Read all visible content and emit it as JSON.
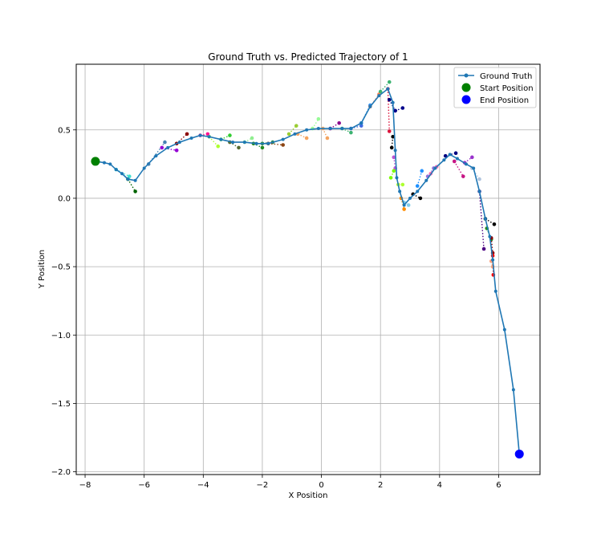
{
  "chart_data": {
    "type": "line",
    "title": "Ground Truth vs. Predicted Trajectory of 1",
    "xlabel": "X Position",
    "ylabel": "Y Position",
    "xlim": [
      -8.3,
      7.4
    ],
    "ylim": [
      -2.02,
      0.98
    ],
    "xticks": [
      "−8",
      "−6",
      "−4",
      "−2",
      "0",
      "2",
      "4",
      "6"
    ],
    "xtick_values": [
      -8,
      -6,
      -4,
      -2,
      0,
      2,
      4,
      6
    ],
    "yticks": [
      "−2.0",
      "−1.5",
      "−1.0",
      "−0.5",
      "0.0",
      "0.5"
    ],
    "ytick_values": [
      -2.0,
      -1.5,
      -1.0,
      -0.5,
      0.0,
      0.5
    ],
    "grid": true,
    "legend_position": "top-right",
    "legend": [
      {
        "label": "Ground Truth",
        "marker": "line-dot",
        "color": "#1f77b4"
      },
      {
        "label": "Start Position",
        "marker": "circle",
        "color": "#008000"
      },
      {
        "label": "End Position",
        "marker": "circle",
        "color": "#0000ff"
      }
    ],
    "ground_truth": {
      "name": "Ground Truth",
      "color": "#1f77b4",
      "x": [
        -7.65,
        -7.35,
        -7.15,
        -6.95,
        -6.75,
        -6.55,
        -6.3,
        -6.0,
        -5.6,
        -5.2,
        -4.8,
        -4.4,
        -4.1,
        -3.8,
        -3.4,
        -3.0,
        -2.6,
        -2.2,
        -1.8,
        -1.3,
        -0.9,
        -0.5,
        -0.1,
        0.3,
        0.7,
        1.0,
        1.35,
        1.65,
        1.95,
        2.25,
        2.42,
        2.5,
        2.55,
        2.65,
        2.8,
        3.0,
        3.25,
        3.55,
        3.85,
        4.15,
        4.35,
        4.6,
        4.9,
        5.15,
        5.35,
        5.55,
        5.7,
        5.8,
        5.9,
        6.2,
        6.5,
        6.7
      ],
      "y": [
        0.27,
        0.26,
        0.25,
        0.21,
        0.18,
        0.14,
        0.13,
        0.22,
        0.31,
        0.37,
        0.41,
        0.44,
        0.46,
        0.45,
        0.43,
        0.41,
        0.41,
        0.4,
        0.4,
        0.43,
        0.47,
        0.5,
        0.51,
        0.51,
        0.51,
        0.51,
        0.55,
        0.67,
        0.75,
        0.8,
        0.7,
        0.35,
        0.15,
        0.05,
        -0.05,
        0.0,
        0.05,
        0.13,
        0.22,
        0.28,
        0.32,
        0.29,
        0.25,
        0.22,
        0.05,
        -0.15,
        -0.28,
        -0.45,
        -0.68,
        -0.96,
        -1.4,
        -1.87
      ]
    },
    "predicted_segments": [
      {
        "color": "#006400",
        "x": [
          -6.55,
          -6.3
        ],
        "y": [
          0.14,
          0.05
        ]
      },
      {
        "color": "#40e0d0",
        "x": [
          -6.95,
          -6.5
        ],
        "y": [
          0.21,
          0.16
        ]
      },
      {
        "color": "#4682b4",
        "x": [
          -5.85,
          -5.3
        ],
        "y": [
          0.25,
          0.41
        ]
      },
      {
        "color": "#9400d3",
        "x": [
          -5.4,
          -4.9
        ],
        "y": [
          0.37,
          0.35
        ]
      },
      {
        "color": "#8b0000",
        "x": [
          -4.9,
          -4.55
        ],
        "y": [
          0.4,
          0.47
        ]
      },
      {
        "color": "#ff1493",
        "x": [
          -4.1,
          -3.85
        ],
        "y": [
          0.46,
          0.47
        ]
      },
      {
        "color": "#adff2f",
        "x": [
          -3.8,
          -3.5
        ],
        "y": [
          0.45,
          0.38
        ]
      },
      {
        "color": "#32cd32",
        "x": [
          -3.4,
          -3.1
        ],
        "y": [
          0.43,
          0.46
        ]
      },
      {
        "color": "#556b2f",
        "x": [
          -3.1,
          -2.8
        ],
        "y": [
          0.41,
          0.37
        ]
      },
      {
        "color": "#90ee90",
        "x": [
          -2.6,
          -2.35
        ],
        "y": [
          0.41,
          0.44
        ]
      },
      {
        "color": "#228b22",
        "x": [
          -2.3,
          -2.0
        ],
        "y": [
          0.4,
          0.37
        ]
      },
      {
        "color": "#2e8b57",
        "x": [
          -2.0,
          -1.65
        ],
        "y": [
          0.4,
          0.41
        ]
      },
      {
        "color": "#8b4513",
        "x": [
          -1.8,
          -1.3
        ],
        "y": [
          0.4,
          0.39
        ]
      },
      {
        "color": "#9acd32",
        "x": [
          -1.1,
          -0.85
        ],
        "y": [
          0.47,
          0.53
        ]
      },
      {
        "color": "#f4a460",
        "x": [
          -0.8,
          -0.5
        ],
        "y": [
          0.47,
          0.44
        ]
      },
      {
        "color": "#98fb98",
        "x": [
          -0.3,
          -0.1
        ],
        "y": [
          0.51,
          0.58
        ]
      },
      {
        "color": "#f4a460",
        "x": [
          0.05,
          0.2
        ],
        "y": [
          0.51,
          0.44
        ]
      },
      {
        "color": "#8b008b",
        "x": [
          0.3,
          0.6
        ],
        "y": [
          0.51,
          0.55
        ]
      },
      {
        "color": "#3cb371",
        "x": [
          0.7,
          1.0
        ],
        "y": [
          0.51,
          0.48
        ]
      },
      {
        "color": "#4169e1",
        "x": [
          1.0,
          1.35
        ],
        "y": [
          0.51,
          0.53
        ]
      },
      {
        "color": "#1e90ff",
        "x": [
          1.35,
          1.65
        ],
        "y": [
          0.55,
          0.68
        ]
      },
      {
        "color": "#ff7f50",
        "x": [
          1.65,
          1.95
        ],
        "y": [
          0.67,
          0.76
        ]
      },
      {
        "color": "#3cb371",
        "x": [
          2.0,
          2.3
        ],
        "y": [
          0.78,
          0.85
        ]
      },
      {
        "color": "#dc143c",
        "x": [
          2.25,
          2.3
        ],
        "y": [
          0.8,
          0.49
        ]
      },
      {
        "color": "#000080",
        "x": [
          2.3,
          2.5
        ],
        "y": [
          0.72,
          0.64
        ]
      },
      {
        "color": "#00008b",
        "x": [
          2.5,
          2.75
        ],
        "y": [
          0.64,
          0.66
        ]
      },
      {
        "color": "#000000",
        "x": [
          2.42,
          2.38
        ],
        "y": [
          0.45,
          0.37
        ]
      },
      {
        "color": "#ba55d3",
        "x": [
          2.45,
          2.5
        ],
        "y": [
          0.3,
          0.22
        ]
      },
      {
        "color": "#7cfc00",
        "x": [
          2.45,
          2.35
        ],
        "y": [
          0.2,
          0.15
        ]
      },
      {
        "color": "#adff2f",
        "x": [
          2.6,
          2.75
        ],
        "y": [
          0.1,
          0.1
        ]
      },
      {
        "color": "#ff8c00",
        "x": [
          2.7,
          2.8
        ],
        "y": [
          0.0,
          -0.08
        ]
      },
      {
        "color": "#87ceeb",
        "x": [
          2.8,
          2.95
        ],
        "y": [
          -0.03,
          -0.05
        ]
      },
      {
        "color": "#000000",
        "x": [
          3.1,
          3.35
        ],
        "y": [
          0.03,
          0.0
        ]
      },
      {
        "color": "#1e90ff",
        "x": [
          3.25,
          3.4
        ],
        "y": [
          0.09,
          0.2
        ]
      },
      {
        "color": "#9370db",
        "x": [
          3.6,
          3.8
        ],
        "y": [
          0.16,
          0.22
        ]
      },
      {
        "color": "#ff69b4",
        "x": [
          3.7,
          3.9
        ],
        "y": [
          0.18,
          0.23
        ]
      },
      {
        "color": "#000080",
        "x": [
          4.2,
          4.55
        ],
        "y": [
          0.31,
          0.33
        ]
      },
      {
        "color": "#c71585",
        "x": [
          4.5,
          4.8
        ],
        "y": [
          0.27,
          0.16
        ]
      },
      {
        "color": "#9932cc",
        "x": [
          4.85,
          5.1
        ],
        "y": [
          0.26,
          0.3
        ]
      },
      {
        "color": "#b0c4de",
        "x": [
          5.1,
          5.35
        ],
        "y": [
          0.22,
          0.14
        ]
      },
      {
        "color": "#4b0082",
        "x": [
          5.35,
          5.5
        ],
        "y": [
          0.05,
          -0.37
        ]
      },
      {
        "color": "#000000",
        "x": [
          5.55,
          5.85
        ],
        "y": [
          -0.15,
          -0.19
        ]
      },
      {
        "color": "#228b22",
        "x": [
          5.6,
          5.75
        ],
        "y": [
          -0.22,
          -0.3
        ]
      },
      {
        "color": "#8b0000",
        "x": [
          5.75,
          5.8
        ],
        "y": [
          -0.29,
          -0.4
        ]
      },
      {
        "color": "#ff0000",
        "x": [
          5.8,
          5.82
        ],
        "y": [
          -0.42,
          -0.56
        ]
      },
      {
        "color": "#ffa07a",
        "x": [
          5.75,
          5.8
        ],
        "y": [
          -0.46,
          -0.5
        ]
      }
    ],
    "start_position": {
      "x": -7.65,
      "y": 0.27,
      "color": "#008000"
    },
    "end_position": {
      "x": 6.7,
      "y": -1.87,
      "color": "#0000ff"
    }
  }
}
